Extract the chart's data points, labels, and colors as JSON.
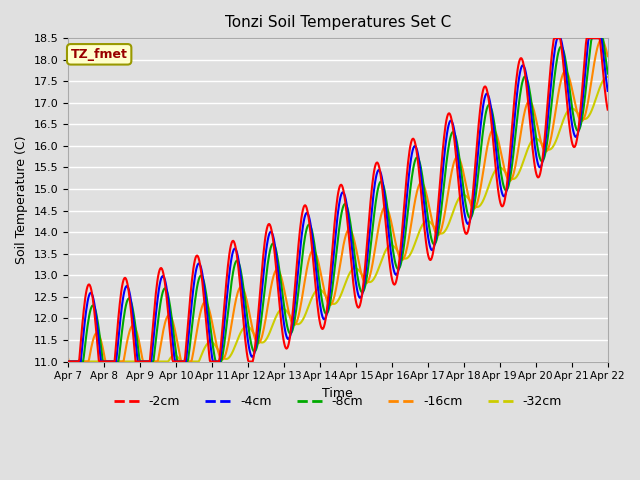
{
  "title": "Tonzi Soil Temperatures Set C",
  "xlabel": "Time",
  "ylabel": "Soil Temperature (C)",
  "ylim": [
    11.0,
    18.5
  ],
  "yticks": [
    11.0,
    11.5,
    12.0,
    12.5,
    13.0,
    13.5,
    14.0,
    14.5,
    15.0,
    15.5,
    16.0,
    16.5,
    17.0,
    17.5,
    18.0,
    18.5
  ],
  "xtick_labels": [
    "Apr 7",
    "Apr 8",
    "Apr 9",
    "Apr 10",
    "Apr 11",
    "Apr 12",
    "Apr 13",
    "Apr 14",
    "Apr 15",
    "Apr 16",
    "Apr 17",
    "Apr 18",
    "Apr 19",
    "Apr 20",
    "Apr 21",
    "Apr 22"
  ],
  "n_days": 15,
  "background_color": "#e0e0e0",
  "plot_bg_color": "#e0e0e0",
  "grid_color": "#ffffff",
  "legend_label": "TZ_fmet",
  "legend_bg": "#ffffcc",
  "legend_border": "#999900",
  "legend_text_color": "#990000",
  "series_colors": [
    "#ff0000",
    "#0000ff",
    "#00aa00",
    "#ff8800",
    "#cccc00"
  ],
  "series_labels": [
    "-2cm",
    "-4cm",
    "-8cm",
    "-16cm",
    "-32cm"
  ],
  "linewidth": 1.5
}
